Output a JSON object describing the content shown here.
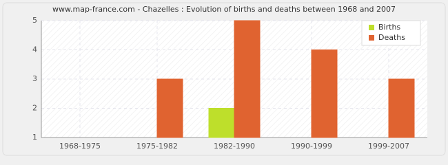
{
  "chart_data": {
    "type": "bar",
    "title": "www.map-france.com - Chazelles : Evolution of births and deaths between 1968 and 2007",
    "categories": [
      "1968-1975",
      "1975-1982",
      "1982-1990",
      "1990-1999",
      "1999-2007"
    ],
    "series": [
      {
        "name": "Births",
        "color": "#bedf2b",
        "values": [
          1,
          1,
          2,
          1,
          1
        ]
      },
      {
        "name": "Deaths",
        "color": "#e06330",
        "values": [
          1,
          3,
          5,
          4,
          3
        ]
      }
    ],
    "ylim": [
      1,
      5
    ],
    "yticks": [
      1,
      2,
      3,
      4,
      5
    ],
    "grid": true,
    "legend": "top-right"
  }
}
